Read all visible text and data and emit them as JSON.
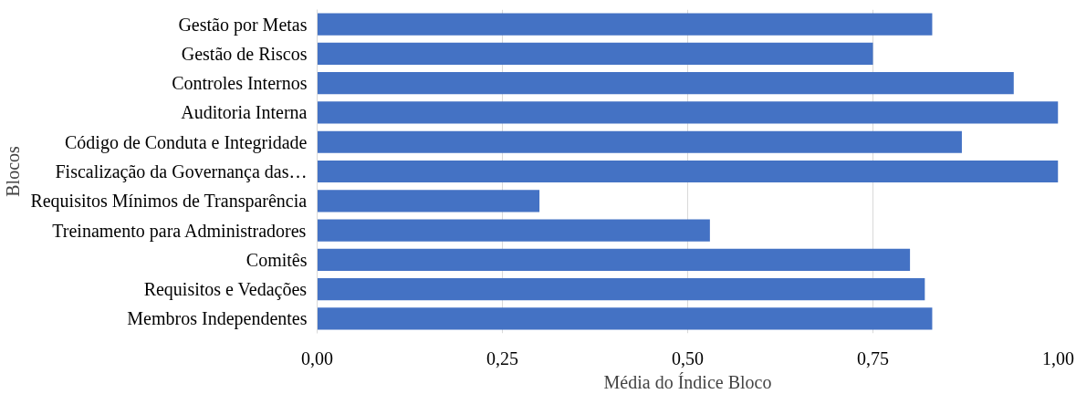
{
  "chart_data": {
    "type": "bar",
    "orientation": "horizontal",
    "xlabel": "Média do Índice Bloco",
    "ylabel": "Blocos",
    "categories": [
      "Gestão por Metas",
      "Gestão de Riscos",
      "Controles Internos",
      "Auditoria Interna",
      "Código de Conduta e Integridade",
      "Fiscalização da Governança das…",
      "Requisitos Mínimos de Transparência",
      "Treinamento para Administradores",
      "Comitês",
      "Requisitos e Vedações",
      "Membros Independentes"
    ],
    "values": [
      0.83,
      0.75,
      0.94,
      1.0,
      0.87,
      1.0,
      0.3,
      0.53,
      0.8,
      0.82,
      0.83
    ],
    "color": "#4472c4",
    "xlim": [
      0,
      1
    ],
    "xticks": [
      {
        "value": 0,
        "label": "0,00"
      },
      {
        "value": 0.25,
        "label": "0,25"
      },
      {
        "value": 0.5,
        "label": "0,50"
      },
      {
        "value": 0.75,
        "label": "0,75"
      },
      {
        "value": 1,
        "label": "1,00"
      }
    ],
    "grid": "x"
  }
}
